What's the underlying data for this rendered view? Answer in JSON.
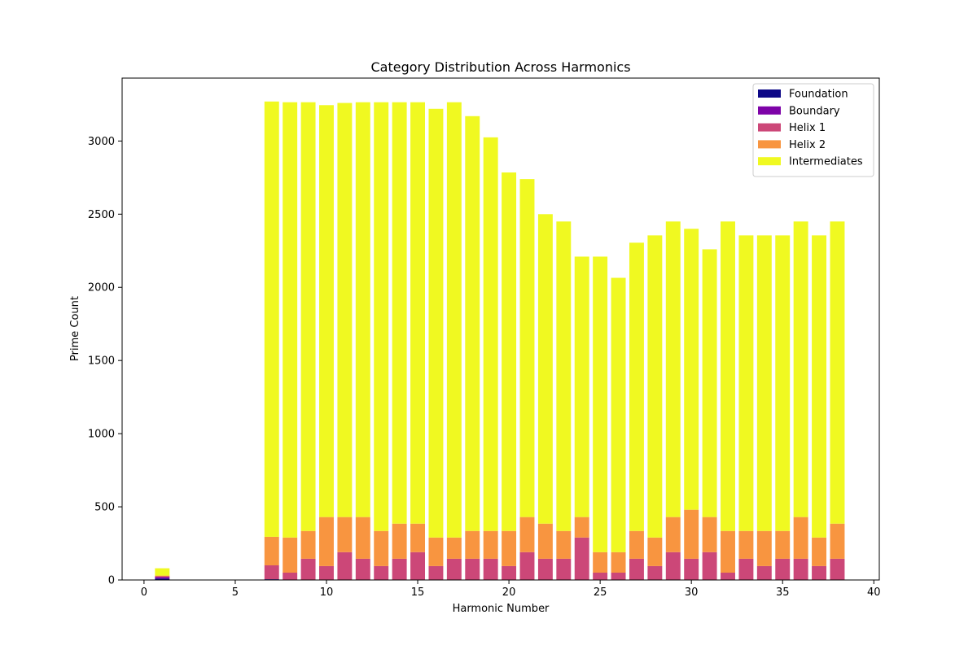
{
  "chart_data": {
    "type": "bar",
    "stacked": true,
    "title": "Category Distribution Across Harmonics",
    "xlabel": "Harmonic Number",
    "ylabel": "Prime Count",
    "xlim": [
      -1.2,
      40.3
    ],
    "ylim": [
      0,
      3430
    ],
    "xticks": [
      0,
      5,
      10,
      15,
      20,
      25,
      30,
      35,
      40
    ],
    "yticks": [
      0,
      500,
      1000,
      1500,
      2000,
      2500,
      3000
    ],
    "grid": false,
    "legend_position": "top-right",
    "x": [
      1,
      7,
      8,
      9,
      10,
      11,
      12,
      13,
      14,
      15,
      16,
      17,
      18,
      19,
      20,
      21,
      22,
      23,
      24,
      25,
      26,
      27,
      28,
      29,
      30,
      31,
      32,
      33,
      34,
      35,
      36,
      37,
      38
    ],
    "series": [
      {
        "name": "Foundation",
        "color": "#0d0887",
        "values": [
          10,
          5,
          0,
          0,
          0,
          0,
          0,
          0,
          0,
          0,
          0,
          0,
          0,
          0,
          0,
          0,
          0,
          0,
          0,
          0,
          0,
          0,
          0,
          0,
          0,
          0,
          0,
          0,
          0,
          0,
          0,
          0,
          0
        ]
      },
      {
        "name": "Boundary",
        "color": "#7e03a8",
        "values": [
          10,
          0,
          0,
          0,
          0,
          0,
          0,
          0,
          0,
          0,
          0,
          0,
          0,
          0,
          0,
          0,
          0,
          0,
          0,
          0,
          0,
          0,
          0,
          0,
          0,
          0,
          0,
          0,
          0,
          0,
          0,
          0,
          0
        ]
      },
      {
        "name": "Helix 1",
        "color": "#cc4778",
        "values": [
          5,
          95,
          50,
          145,
          95,
          190,
          145,
          95,
          145,
          190,
          95,
          145,
          145,
          145,
          95,
          190,
          145,
          145,
          290,
          50,
          50,
          145,
          95,
          190,
          145,
          190,
          50,
          145,
          95,
          145,
          145,
          95,
          145
        ]
      },
      {
        "name": "Helix 2",
        "color": "#f89540",
        "values": [
          5,
          195,
          240,
          190,
          335,
          240,
          285,
          240,
          240,
          195,
          195,
          145,
          190,
          190,
          240,
          240,
          240,
          190,
          140,
          140,
          140,
          190,
          195,
          240,
          335,
          240,
          285,
          190,
          240,
          190,
          285,
          195,
          240
        ]
      },
      {
        "name": "Intermediates",
        "color": "#f0f921",
        "values": [
          50,
          2975,
          2975,
          2930,
          2815,
          2830,
          2835,
          2930,
          2880,
          2880,
          2930,
          2975,
          2835,
          2690,
          2450,
          2310,
          2115,
          2115,
          1780,
          2020,
          1875,
          1970,
          2065,
          2020,
          1920,
          1830,
          2115,
          2020,
          2020,
          2020,
          2020,
          2065,
          2065
        ]
      }
    ]
  }
}
